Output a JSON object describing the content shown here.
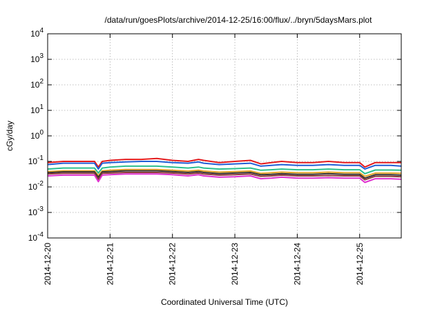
{
  "chart_data": {
    "type": "line",
    "title": "/data/run/goesPlots/archive/2014-12-25/16:00/flux/../bryn/5daysMars.plot",
    "xlabel": "Coordinated Universal Time (UTC)",
    "ylabel": "cGy/day",
    "yscale": "log",
    "ylim": [
      0.0001,
      10000
    ],
    "xlim": [
      "2014-12-20",
      "2014-12-25T16:00"
    ],
    "grid": true,
    "legend": "none",
    "y_ticks": [
      {
        "base": "10",
        "exp": "-4",
        "value": 0.0001
      },
      {
        "base": "10",
        "exp": "-3",
        "value": 0.001
      },
      {
        "base": "10",
        "exp": "-2",
        "value": 0.01
      },
      {
        "base": "10",
        "exp": "-1",
        "value": 0.1
      },
      {
        "base": "10",
        "exp": "0",
        "value": 1
      },
      {
        "base": "10",
        "exp": "1",
        "value": 10
      },
      {
        "base": "10",
        "exp": "2",
        "value": 100
      },
      {
        "base": "10",
        "exp": "3",
        "value": 1000
      },
      {
        "base": "10",
        "exp": "4",
        "value": 10000
      }
    ],
    "x_ticks": [
      {
        "label": "2014-12-20",
        "value": "2014-12-20"
      },
      {
        "label": "2014-12-21",
        "value": "2014-12-21"
      },
      {
        "label": "2014-12-22",
        "value": "2014-12-22"
      },
      {
        "label": "2014-12-23",
        "value": "2014-12-23"
      },
      {
        "label": "2014-12-24",
        "value": "2014-12-24"
      },
      {
        "label": "2014-12-25",
        "value": "2014-12-25"
      }
    ],
    "x": [
      "2014-12-20T00:00",
      "2014-12-20T06:00",
      "2014-12-20T12:00",
      "2014-12-20T18:00",
      "2014-12-20T19:30",
      "2014-12-20T21:00",
      "2014-12-21T00:00",
      "2014-12-21T06:00",
      "2014-12-21T12:00",
      "2014-12-21T18:00",
      "2014-12-22T00:00",
      "2014-12-22T06:00",
      "2014-12-22T10:00",
      "2014-12-22T12:00",
      "2014-12-22T18:00",
      "2014-12-23T00:00",
      "2014-12-23T06:00",
      "2014-12-23T10:00",
      "2014-12-23T14:00",
      "2014-12-23T18:00",
      "2014-12-24T00:00",
      "2014-12-24T06:00",
      "2014-12-24T12:00",
      "2014-12-24T18:00",
      "2014-12-25T00:00",
      "2014-12-25T02:00",
      "2014-12-25T06:00",
      "2014-12-25T12:00",
      "2014-12-25T16:00"
    ],
    "series": [
      {
        "color": "#e41a1c",
        "values": [
          0.09,
          0.1,
          0.1,
          0.1,
          0.06,
          0.1,
          0.11,
          0.12,
          0.12,
          0.13,
          0.11,
          0.1,
          0.12,
          0.11,
          0.09,
          0.1,
          0.11,
          0.08,
          0.09,
          0.1,
          0.09,
          0.09,
          0.1,
          0.09,
          0.09,
          0.06,
          0.09,
          0.09,
          0.09
        ]
      },
      {
        "color": "#1f5fd6",
        "values": [
          0.075,
          0.085,
          0.085,
          0.085,
          0.05,
          0.085,
          0.09,
          0.095,
          0.1,
          0.1,
          0.09,
          0.085,
          0.095,
          0.085,
          0.075,
          0.08,
          0.085,
          0.065,
          0.07,
          0.075,
          0.07,
          0.07,
          0.075,
          0.07,
          0.07,
          0.05,
          0.07,
          0.07,
          0.065
        ]
      },
      {
        "color": "#2bbf8f",
        "values": [
          0.05,
          0.055,
          0.055,
          0.055,
          0.035,
          0.055,
          0.06,
          0.065,
          0.065,
          0.065,
          0.06,
          0.055,
          0.06,
          0.055,
          0.05,
          0.052,
          0.055,
          0.045,
          0.047,
          0.05,
          0.047,
          0.047,
          0.05,
          0.047,
          0.047,
          0.033,
          0.046,
          0.046,
          0.045
        ]
      },
      {
        "color": "#e8a52a",
        "values": [
          0.04,
          0.043,
          0.043,
          0.043,
          0.028,
          0.043,
          0.045,
          0.048,
          0.048,
          0.048,
          0.045,
          0.042,
          0.045,
          0.042,
          0.038,
          0.04,
          0.042,
          0.034,
          0.036,
          0.038,
          0.036,
          0.036,
          0.038,
          0.036,
          0.036,
          0.026,
          0.035,
          0.035,
          0.034
        ]
      },
      {
        "color": "#333333",
        "values": [
          0.036,
          0.039,
          0.039,
          0.039,
          0.024,
          0.039,
          0.04,
          0.043,
          0.043,
          0.043,
          0.04,
          0.037,
          0.04,
          0.037,
          0.033,
          0.035,
          0.037,
          0.03,
          0.031,
          0.033,
          0.031,
          0.031,
          0.033,
          0.031,
          0.031,
          0.022,
          0.03,
          0.03,
          0.029
        ]
      },
      {
        "color": "#8a3a3a",
        "values": [
          0.032,
          0.034,
          0.034,
          0.034,
          0.02,
          0.034,
          0.035,
          0.037,
          0.037,
          0.037,
          0.035,
          0.032,
          0.035,
          0.032,
          0.029,
          0.03,
          0.032,
          0.026,
          0.027,
          0.029,
          0.027,
          0.027,
          0.028,
          0.027,
          0.027,
          0.019,
          0.026,
          0.026,
          0.025
        ]
      },
      {
        "color": "#e030d0",
        "values": [
          0.027,
          0.029,
          0.029,
          0.029,
          0.016,
          0.029,
          0.03,
          0.032,
          0.032,
          0.032,
          0.03,
          0.027,
          0.03,
          0.027,
          0.024,
          0.025,
          0.027,
          0.021,
          0.022,
          0.024,
          0.022,
          0.022,
          0.023,
          0.022,
          0.022,
          0.015,
          0.021,
          0.021,
          0.02
        ]
      }
    ]
  }
}
